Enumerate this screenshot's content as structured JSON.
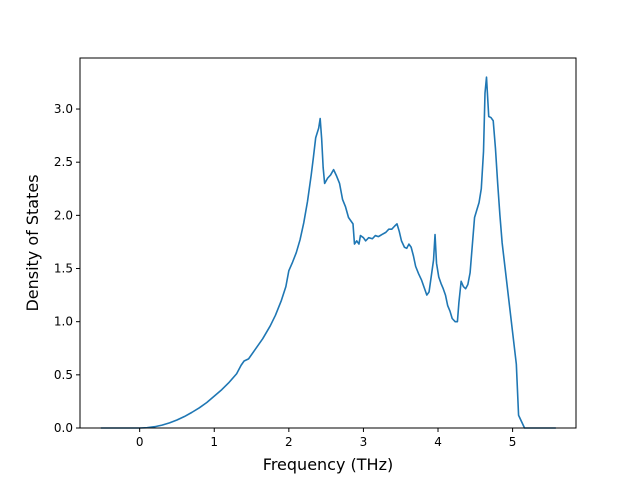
{
  "chart_data": {
    "type": "line",
    "title": "",
    "xlabel": "Frequency (THz)",
    "ylabel": "Density of States",
    "xlim": [
      -0.8,
      5.85
    ],
    "ylim": [
      0.0,
      3.48
    ],
    "xticks": [
      0,
      1,
      2,
      3,
      4,
      5
    ],
    "xtick_labels": [
      "0",
      "1",
      "2",
      "3",
      "4",
      "5"
    ],
    "yticks": [
      0.0,
      0.5,
      1.0,
      1.5,
      2.0,
      2.5,
      3.0
    ],
    "ytick_labels": [
      "0.0",
      "0.5",
      "1.0",
      "1.5",
      "2.0",
      "2.5",
      "3.0"
    ],
    "grid": false,
    "series_color": "#1f77b4",
    "series": [
      {
        "points": [
          [
            -0.52,
            0.0
          ],
          [
            -0.4,
            0.0
          ],
          [
            -0.2,
            0.0
          ],
          [
            0.0,
            0.0
          ],
          [
            0.1,
            0.003
          ],
          [
            0.2,
            0.012
          ],
          [
            0.3,
            0.027
          ],
          [
            0.4,
            0.048
          ],
          [
            0.5,
            0.075
          ],
          [
            0.6,
            0.108
          ],
          [
            0.7,
            0.147
          ],
          [
            0.8,
            0.19
          ],
          [
            0.9,
            0.24
          ],
          [
            1.0,
            0.3
          ],
          [
            1.1,
            0.36
          ],
          [
            1.2,
            0.43
          ],
          [
            1.3,
            0.51
          ],
          [
            1.36,
            0.59
          ],
          [
            1.4,
            0.63
          ],
          [
            1.46,
            0.65
          ],
          [
            1.55,
            0.74
          ],
          [
            1.65,
            0.84
          ],
          [
            1.75,
            0.96
          ],
          [
            1.82,
            1.06
          ],
          [
            1.9,
            1.2
          ],
          [
            1.96,
            1.33
          ],
          [
            2.0,
            1.48
          ],
          [
            2.05,
            1.56
          ],
          [
            2.1,
            1.65
          ],
          [
            2.15,
            1.77
          ],
          [
            2.2,
            1.93
          ],
          [
            2.25,
            2.13
          ],
          [
            2.3,
            2.38
          ],
          [
            2.33,
            2.55
          ],
          [
            2.36,
            2.73
          ],
          [
            2.4,
            2.82
          ],
          [
            2.42,
            2.91
          ],
          [
            2.44,
            2.72
          ],
          [
            2.46,
            2.45
          ],
          [
            2.48,
            2.3
          ],
          [
            2.52,
            2.35
          ],
          [
            2.56,
            2.38
          ],
          [
            2.6,
            2.43
          ],
          [
            2.64,
            2.37
          ],
          [
            2.68,
            2.3
          ],
          [
            2.72,
            2.15
          ],
          [
            2.76,
            2.08
          ],
          [
            2.8,
            1.98
          ],
          [
            2.86,
            1.92
          ],
          [
            2.88,
            1.73
          ],
          [
            2.91,
            1.76
          ],
          [
            2.94,
            1.73
          ],
          [
            2.96,
            1.81
          ],
          [
            3.0,
            1.79
          ],
          [
            3.03,
            1.76
          ],
          [
            3.07,
            1.79
          ],
          [
            3.12,
            1.78
          ],
          [
            3.16,
            1.81
          ],
          [
            3.2,
            1.8
          ],
          [
            3.25,
            1.82
          ],
          [
            3.3,
            1.84
          ],
          [
            3.34,
            1.87
          ],
          [
            3.38,
            1.87
          ],
          [
            3.42,
            1.9
          ],
          [
            3.45,
            1.92
          ],
          [
            3.48,
            1.85
          ],
          [
            3.51,
            1.76
          ],
          [
            3.55,
            1.7
          ],
          [
            3.58,
            1.69
          ],
          [
            3.61,
            1.73
          ],
          [
            3.64,
            1.7
          ],
          [
            3.67,
            1.62
          ],
          [
            3.7,
            1.52
          ],
          [
            3.74,
            1.45
          ],
          [
            3.78,
            1.39
          ],
          [
            3.82,
            1.31
          ],
          [
            3.85,
            1.25
          ],
          [
            3.88,
            1.28
          ],
          [
            3.91,
            1.43
          ],
          [
            3.94,
            1.58
          ],
          [
            3.96,
            1.82
          ],
          [
            3.98,
            1.55
          ],
          [
            4.01,
            1.42
          ],
          [
            4.04,
            1.36
          ],
          [
            4.07,
            1.31
          ],
          [
            4.1,
            1.25
          ],
          [
            4.13,
            1.15
          ],
          [
            4.16,
            1.1
          ],
          [
            4.19,
            1.03
          ],
          [
            4.23,
            1.0
          ],
          [
            4.26,
            1.0
          ],
          [
            4.28,
            1.18
          ],
          [
            4.31,
            1.38
          ],
          [
            4.34,
            1.33
          ],
          [
            4.37,
            1.31
          ],
          [
            4.4,
            1.35
          ],
          [
            4.43,
            1.46
          ],
          [
            4.46,
            1.72
          ],
          [
            4.49,
            1.98
          ],
          [
            4.52,
            2.05
          ],
          [
            4.55,
            2.12
          ],
          [
            4.58,
            2.25
          ],
          [
            4.61,
            2.6
          ],
          [
            4.63,
            3.15
          ],
          [
            4.65,
            3.3
          ],
          [
            4.68,
            2.93
          ],
          [
            4.71,
            2.92
          ],
          [
            4.74,
            2.89
          ],
          [
            4.77,
            2.63
          ],
          [
            4.8,
            2.3
          ],
          [
            4.83,
            2.0
          ],
          [
            4.86,
            1.74
          ],
          [
            4.9,
            1.5
          ],
          [
            4.95,
            1.2
          ],
          [
            5.0,
            0.9
          ],
          [
            5.05,
            0.6
          ],
          [
            5.08,
            0.12
          ],
          [
            5.12,
            0.06
          ],
          [
            5.16,
            0.0
          ],
          [
            5.3,
            0.0
          ],
          [
            5.45,
            0.0
          ],
          [
            5.58,
            0.0
          ]
        ]
      }
    ]
  }
}
